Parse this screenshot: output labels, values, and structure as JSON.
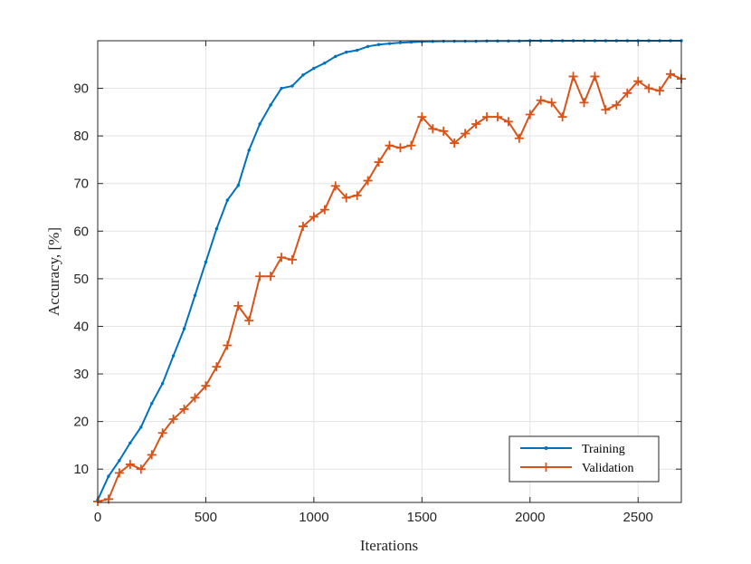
{
  "chart_data": {
    "type": "line",
    "xlabel": "Iterations",
    "ylabel": "Accuracy, [%]",
    "xlim": [
      0,
      2700
    ],
    "ylim": [
      3,
      100
    ],
    "xticks": [
      0,
      500,
      1000,
      1500,
      2000,
      2500
    ],
    "yticks": [
      10,
      20,
      30,
      40,
      50,
      60,
      70,
      80,
      90
    ],
    "grid": true,
    "legend_position": "bottom-right",
    "series": [
      {
        "name": "Training",
        "color": "#0072BD",
        "marker": "dot",
        "x": [
          0,
          50,
          100,
          150,
          200,
          250,
          300,
          350,
          400,
          450,
          500,
          550,
          600,
          650,
          700,
          750,
          800,
          850,
          900,
          950,
          1000,
          1050,
          1100,
          1150,
          1200,
          1250,
          1300,
          1350,
          1400,
          1450,
          1500,
          1550,
          1600,
          1650,
          1700,
          1750,
          1800,
          1850,
          1900,
          1950,
          2000,
          2050,
          2100,
          2150,
          2200,
          2250,
          2300,
          2350,
          2400,
          2450,
          2500,
          2550,
          2600,
          2650,
          2700
        ],
        "y": [
          3.5,
          8.5,
          11.8,
          15.5,
          18.8,
          23.8,
          28,
          33.8,
          39.5,
          46.5,
          53.5,
          60.5,
          66.5,
          69.6,
          77,
          82.5,
          86.5,
          90,
          90.5,
          92.8,
          94.2,
          95.3,
          96.7,
          97.6,
          98,
          98.8,
          99.2,
          99.4,
          99.6,
          99.7,
          99.8,
          99.85,
          99.9,
          99.9,
          99.9,
          99.9,
          99.95,
          99.95,
          99.95,
          99.95,
          100,
          100,
          100,
          100,
          100,
          100,
          100,
          100,
          100,
          100,
          100,
          100,
          100,
          100,
          100
        ]
      },
      {
        "name": "Validation",
        "color": "#D95319",
        "marker": "plus",
        "x": [
          0,
          50,
          100,
          150,
          200,
          250,
          300,
          350,
          400,
          450,
          500,
          550,
          600,
          650,
          700,
          750,
          800,
          850,
          900,
          950,
          1000,
          1050,
          1100,
          1150,
          1200,
          1250,
          1300,
          1350,
          1400,
          1450,
          1500,
          1550,
          1600,
          1650,
          1700,
          1750,
          1800,
          1850,
          1900,
          1950,
          2000,
          2050,
          2100,
          2150,
          2200,
          2250,
          2300,
          2350,
          2400,
          2450,
          2500,
          2550,
          2600,
          2650,
          2700
        ],
        "y": [
          3.2,
          3.7,
          9.2,
          11,
          10,
          13,
          17.6,
          20.5,
          22.6,
          25,
          27.5,
          31.5,
          36,
          44.3,
          41.2,
          50.5,
          50.5,
          54.5,
          54,
          61,
          63,
          64.5,
          69.5,
          67,
          67.5,
          70.6,
          74.5,
          78,
          77.5,
          78,
          84,
          81.5,
          81,
          78.5,
          80.5,
          82.5,
          84,
          84,
          83,
          79.5,
          84.5,
          87.5,
          87,
          84,
          92.5,
          87,
          92.5,
          85.5,
          86.5,
          89,
          91.5,
          90,
          89.5,
          93,
          92
        ]
      }
    ]
  }
}
